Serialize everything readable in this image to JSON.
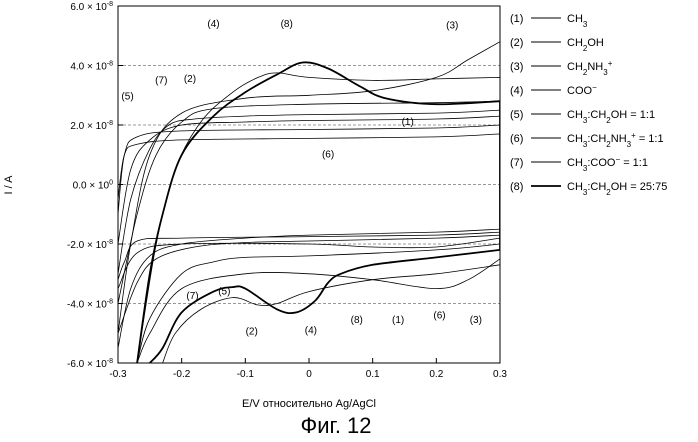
{
  "chart_data": {
    "type": "line",
    "caption": "Фиг. 12",
    "xlabel": "E/V относительно Ag/AgCl",
    "ylabel": "I / A",
    "xlim": [
      -0.3,
      0.3
    ],
    "ylim": [
      -6e-08,
      6e-08
    ],
    "x_ticks": [
      {
        "value": -0.3,
        "label": "-0.3"
      },
      {
        "value": -0.2,
        "label": "-0.2"
      },
      {
        "value": -0.1,
        "label": "-0.1"
      },
      {
        "value": 0,
        "label": "0"
      },
      {
        "value": 0.1,
        "label": "0.1"
      },
      {
        "value": 0.2,
        "label": "0.2"
      },
      {
        "value": 0.3,
        "label": "0.3"
      }
    ],
    "y_ticks": [
      {
        "value": 6e-08,
        "mant": "6.0",
        "exp": "-8"
      },
      {
        "value": 4e-08,
        "mant": "4.0",
        "exp": "-8"
      },
      {
        "value": 2e-08,
        "mant": "2.0",
        "exp": "-8"
      },
      {
        "value": 0,
        "mant": "0.0",
        "exp": "0"
      },
      {
        "value": -2e-08,
        "mant": "-2.0",
        "exp": "-8"
      },
      {
        "value": -4e-08,
        "mant": "-4.0",
        "exp": "-8"
      },
      {
        "value": -6e-08,
        "mant": "-6.0",
        "exp": "-8"
      }
    ],
    "dashed_gridlines_y": [
      4e-08,
      2e-08,
      0,
      -2e-08,
      -4e-08
    ],
    "legend_position": "right",
    "series": [
      {
        "id": "1",
        "label": "CH3",
        "width": 0.8,
        "forward": [
          [
            -0.3,
            -5e-09
          ],
          [
            -0.29,
            1e-08
          ],
          [
            -0.27,
            1.35e-08
          ],
          [
            -0.2,
            1.5e-08
          ],
          [
            0,
            1.55e-08
          ],
          [
            0.2,
            1.6e-08
          ],
          [
            0.3,
            1.7e-08
          ]
        ],
        "reverse": [
          [
            0.3,
            -1.6e-08
          ],
          [
            0.2,
            -1.7e-08
          ],
          [
            0,
            -1.75e-08
          ],
          [
            -0.2,
            -1.8e-08
          ],
          [
            -0.27,
            -1.9e-08
          ],
          [
            -0.29,
            -2.6e-08
          ],
          [
            -0.3,
            -3.2e-08
          ]
        ]
      },
      {
        "id": "2",
        "label": "CH2OH",
        "width": 0.8,
        "forward": [
          [
            -0.3,
            -4e-08
          ],
          [
            -0.27,
            -1e-08
          ],
          [
            -0.24,
            1e-08
          ],
          [
            -0.2,
            2.1e-08
          ],
          [
            -0.15,
            2.55e-08
          ],
          [
            0,
            2.7e-08
          ],
          [
            0.2,
            2.75e-08
          ],
          [
            0.3,
            2.8e-08
          ]
        ],
        "reverse": [
          [
            0.3,
            -2e-08
          ],
          [
            0.2,
            -2.2e-08
          ],
          [
            0,
            -2.4e-08
          ],
          [
            -0.1,
            -2.45e-08
          ],
          [
            -0.15,
            -2.6e-08
          ],
          [
            -0.2,
            -3e-08
          ],
          [
            -0.25,
            -4.5e-08
          ],
          [
            -0.27,
            -6e-08
          ]
        ]
      },
      {
        "id": "3",
        "label": "CH2NH3+",
        "width": 0.8,
        "forward": [
          [
            -0.3,
            -5e-08
          ],
          [
            -0.28,
            -2e-08
          ],
          [
            -0.25,
            1e-08
          ],
          [
            -0.2,
            2.4e-08
          ],
          [
            -0.1,
            2.9e-08
          ],
          [
            0,
            3e-08
          ],
          [
            0.1,
            3.15e-08
          ],
          [
            0.2,
            3.6e-08
          ],
          [
            0.25,
            4.2e-08
          ],
          [
            0.3,
            4.8e-08
          ]
        ],
        "reverse": [
          [
            0.3,
            -2.5e-08
          ],
          [
            0.25,
            -3.2e-08
          ],
          [
            0.2,
            -3.5e-08
          ],
          [
            0.1,
            -3.2e-08
          ],
          [
            0,
            -3e-08
          ],
          [
            -0.1,
            -3e-08
          ],
          [
            -0.2,
            -3.5e-08
          ],
          [
            -0.25,
            -5e-08
          ],
          [
            -0.27,
            -6e-08
          ]
        ]
      },
      {
        "id": "4",
        "label": "COO−",
        "width": 0.8,
        "forward": [
          [
            -0.27,
            -6e-08
          ],
          [
            -0.24,
            -2e-08
          ],
          [
            -0.21,
            5e-09
          ],
          [
            -0.17,
            2.1e-08
          ],
          [
            -0.12,
            3.1e-08
          ],
          [
            -0.08,
            3.6e-08
          ],
          [
            -0.05,
            3.75e-08
          ],
          [
            0,
            3.6e-08
          ],
          [
            0.1,
            3.5e-08
          ],
          [
            0.2,
            3.55e-08
          ],
          [
            0.3,
            3.6e-08
          ]
        ],
        "reverse": [
          [
            0.3,
            -2.7e-08
          ],
          [
            0.2,
            -3e-08
          ],
          [
            0.1,
            -3.2e-08
          ],
          [
            0,
            -3.6e-08
          ],
          [
            -0.05,
            -4e-08
          ],
          [
            -0.08,
            -4.05e-08
          ],
          [
            -0.12,
            -3.8e-08
          ],
          [
            -0.17,
            -4.2e-08
          ],
          [
            -0.21,
            -5e-08
          ],
          [
            -0.23,
            -6e-08
          ]
        ]
      },
      {
        "id": "5",
        "label": "CH3:CH2OH = 1:1",
        "width": 0.8,
        "forward": [
          [
            -0.3,
            -2e-08
          ],
          [
            -0.28,
            5e-09
          ],
          [
            -0.25,
            1.5e-08
          ],
          [
            -0.2,
            2e-08
          ],
          [
            -0.1,
            2.1e-08
          ],
          [
            0,
            2.15e-08
          ],
          [
            0.2,
            2.2e-08
          ],
          [
            0.3,
            2.3e-08
          ]
        ],
        "reverse": [
          [
            0.3,
            -1.7e-08
          ],
          [
            0.2,
            -1.8e-08
          ],
          [
            0,
            -1.9e-08
          ],
          [
            -0.1,
            -1.95e-08
          ],
          [
            -0.18,
            -2.1e-08
          ],
          [
            -0.24,
            -2.5e-08
          ],
          [
            -0.27,
            -3.3e-08
          ],
          [
            -0.3,
            -5e-08
          ]
        ]
      },
      {
        "id": "6",
        "label": "CH3:CH2NH3+ = 1:1",
        "width": 0.8,
        "forward": [
          [
            -0.3,
            -1e-08
          ],
          [
            -0.29,
            1e-08
          ],
          [
            -0.27,
            1.6e-08
          ],
          [
            -0.2,
            1.8e-08
          ],
          [
            0,
            1.85e-08
          ],
          [
            0.2,
            1.9e-08
          ],
          [
            0.3,
            2e-08
          ]
        ],
        "reverse": [
          [
            0.3,
            -1.8e-08
          ],
          [
            0.2,
            -2.1e-08
          ],
          [
            0.1,
            -2.1e-08
          ],
          [
            0,
            -2e-08
          ],
          [
            -0.2,
            -2e-08
          ],
          [
            -0.27,
            -2.3e-08
          ],
          [
            -0.3,
            -3.5e-08
          ]
        ]
      },
      {
        "id": "7",
        "label": "CH3:COO− = 1:1",
        "width": 0.8,
        "forward": [
          [
            -0.3,
            -3e-08
          ],
          [
            -0.28,
            -5e-09
          ],
          [
            -0.25,
            1.2e-08
          ],
          [
            -0.22,
            2e-08
          ],
          [
            -0.18,
            2.2e-08
          ],
          [
            -0.1,
            2.3e-08
          ],
          [
            0,
            2.35e-08
          ],
          [
            0.2,
            2.4e-08
          ],
          [
            0.3,
            2.5e-08
          ]
        ],
        "reverse": [
          [
            0.3,
            -1.5e-08
          ],
          [
            0.2,
            -1.6e-08
          ],
          [
            0,
            -1.7e-08
          ],
          [
            -0.1,
            -1.8e-08
          ],
          [
            -0.2,
            -2e-08
          ],
          [
            -0.25,
            -2.4e-08
          ],
          [
            -0.28,
            -3.5e-08
          ],
          [
            -0.3,
            -5.5e-08
          ]
        ]
      },
      {
        "id": "8",
        "label": "CH3:CH2OH = 25:75",
        "width": 1.8,
        "forward": [
          [
            -0.27,
            -6e-08
          ],
          [
            -0.25,
            -3e-08
          ],
          [
            -0.23,
            -1e-08
          ],
          [
            -0.2,
            1e-08
          ],
          [
            -0.15,
            2.3e-08
          ],
          [
            -0.1,
            3.1e-08
          ],
          [
            -0.05,
            3.7e-08
          ],
          [
            -0.01,
            4.1e-08
          ],
          [
            0.03,
            3.9e-08
          ],
          [
            0.08,
            3.3e-08
          ],
          [
            0.12,
            2.9e-08
          ],
          [
            0.2,
            2.7e-08
          ],
          [
            0.3,
            2.8e-08
          ]
        ],
        "reverse": [
          [
            0.3,
            -2.2e-08
          ],
          [
            0.2,
            -2.45e-08
          ],
          [
            0.1,
            -2.7e-08
          ],
          [
            0.05,
            -3e-08
          ],
          [
            0.03,
            -3.3e-08
          ],
          [
            0.01,
            -3.9e-08
          ],
          [
            -0.02,
            -4.3e-08
          ],
          [
            -0.05,
            -4.2e-08
          ],
          [
            -0.1,
            -3.5e-08
          ],
          [
            -0.12,
            -3.45e-08
          ],
          [
            -0.15,
            -3.6e-08
          ],
          [
            -0.2,
            -4.3e-08
          ],
          [
            -0.23,
            -5.5e-08
          ],
          [
            -0.25,
            -6e-08
          ]
        ]
      }
    ],
    "annotations": [
      {
        "text": "(1)",
        "x": 0.155,
        "y": 2e-08
      },
      {
        "text": "(2)",
        "x": -0.187,
        "y": 3.45e-08
      },
      {
        "text": "(3)",
        "x": 0.225,
        "y": 5.25e-08
      },
      {
        "text": "(4)",
        "x": -0.15,
        "y": 5.3e-08
      },
      {
        "text": "(5)",
        "x": -0.285,
        "y": 2.85e-08
      },
      {
        "text": "(6)",
        "x": 0.03,
        "y": 9e-09
      },
      {
        "text": "(7)",
        "x": -0.232,
        "y": 3.4e-08
      },
      {
        "text": "(8)",
        "x": -0.035,
        "y": 5.3e-08
      },
      {
        "text": "(7)",
        "x": -0.183,
        "y": -3.85e-08
      },
      {
        "text": "(5)",
        "x": -0.133,
        "y": -3.7e-08
      },
      {
        "text": "(2)",
        "x": -0.09,
        "y": -5.05e-08
      },
      {
        "text": "(4)",
        "x": 0.003,
        "y": -5e-08
      },
      {
        "text": "(8)",
        "x": 0.075,
        "y": -4.65e-08
      },
      {
        "text": "(1)",
        "x": 0.14,
        "y": -4.65e-08
      },
      {
        "text": "(6)",
        "x": 0.205,
        "y": -4.5e-08
      },
      {
        "text": "(3)",
        "x": 0.262,
        "y": -4.65e-08
      }
    ],
    "legend": [
      {
        "id": "(1)",
        "parts": [
          [
            "CH",
            ""
          ],
          [
            "3",
            "sub"
          ]
        ]
      },
      {
        "id": "(2)",
        "parts": [
          [
            "CH",
            ""
          ],
          [
            "2",
            "sub"
          ],
          [
            "OH",
            ""
          ]
        ]
      },
      {
        "id": "(3)",
        "parts": [
          [
            "CH",
            ""
          ],
          [
            "2",
            "sub"
          ],
          [
            "NH",
            ""
          ],
          [
            "3",
            "sub"
          ],
          [
            "+",
            "sup"
          ]
        ]
      },
      {
        "id": "(4)",
        "parts": [
          [
            "COO",
            ""
          ],
          [
            "−",
            "sup"
          ]
        ]
      },
      {
        "id": "(5)",
        "parts": [
          [
            "CH",
            ""
          ],
          [
            "3",
            "sub"
          ],
          [
            ":CH",
            ""
          ],
          [
            "2",
            "sub"
          ],
          [
            "OH = 1:1",
            ""
          ]
        ]
      },
      {
        "id": "(6)",
        "parts": [
          [
            "CH",
            ""
          ],
          [
            "3",
            "sub"
          ],
          [
            ":CH",
            ""
          ],
          [
            "2",
            "sub"
          ],
          [
            "NH",
            ""
          ],
          [
            "3",
            "sub"
          ],
          [
            "+",
            "sup"
          ],
          [
            " = 1:1",
            ""
          ]
        ]
      },
      {
        "id": "(7)",
        "parts": [
          [
            "CH",
            ""
          ],
          [
            "3",
            "sub"
          ],
          [
            ":COO",
            ""
          ],
          [
            "−",
            "sup"
          ],
          [
            " = 1:1",
            ""
          ]
        ]
      },
      {
        "id": "(8)",
        "parts": [
          [
            "CH",
            ""
          ],
          [
            "3",
            "sub"
          ],
          [
            ":CH",
            ""
          ],
          [
            "2",
            "sub"
          ],
          [
            "OH = 25:75",
            ""
          ]
        ]
      }
    ]
  }
}
